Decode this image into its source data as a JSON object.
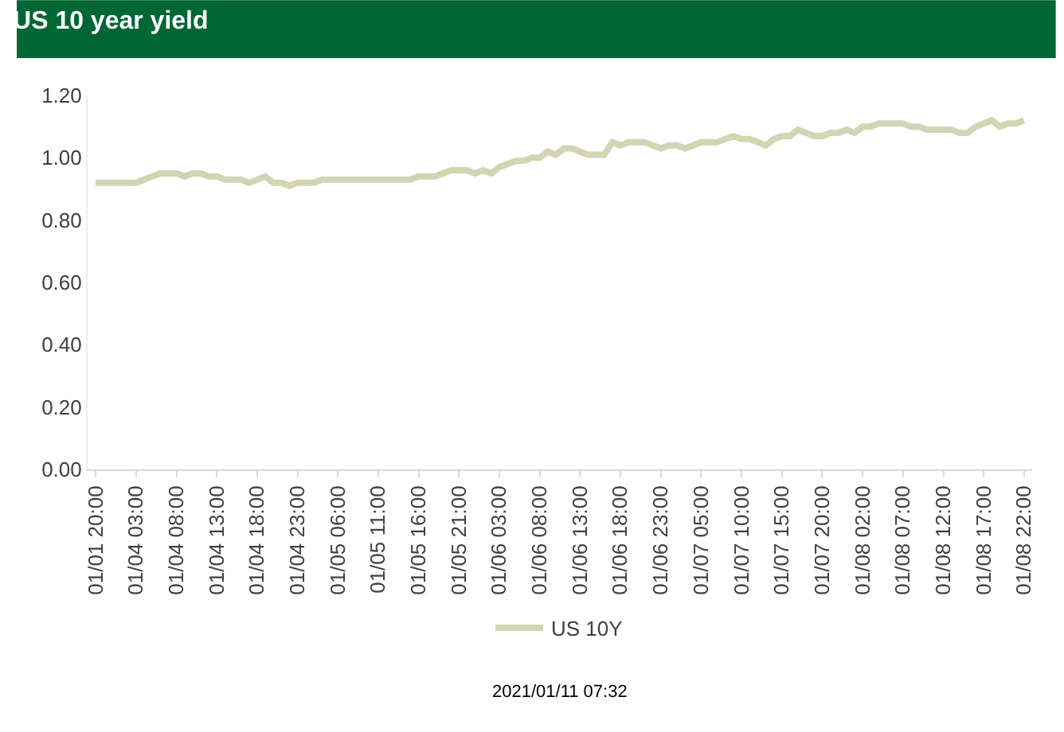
{
  "chart_data": {
    "type": "line",
    "title": "US 10 year yield",
    "categories": [
      "01/01 20:00",
      null,
      null,
      null,
      null,
      "01/04 03:00",
      null,
      null,
      null,
      null,
      "01/04 08:00",
      null,
      null,
      null,
      null,
      "01/04 13:00",
      null,
      null,
      null,
      null,
      "01/04 18:00",
      null,
      null,
      null,
      null,
      "01/04 23:00",
      null,
      null,
      null,
      null,
      "01/05 06:00",
      null,
      null,
      null,
      null,
      "01/05 11:00",
      null,
      null,
      null,
      null,
      "01/05 16:00",
      null,
      null,
      null,
      null,
      "01/05 21:00",
      null,
      null,
      null,
      null,
      "01/06 03:00",
      null,
      null,
      null,
      null,
      "01/06 08:00",
      null,
      null,
      null,
      null,
      "01/06 13:00",
      null,
      null,
      null,
      null,
      "01/06 18:00",
      null,
      null,
      null,
      null,
      "01/06 23:00",
      null,
      null,
      null,
      null,
      "01/07 05:00",
      null,
      null,
      null,
      null,
      "01/07 10:00",
      null,
      null,
      null,
      null,
      "01/07 15:00",
      null,
      null,
      null,
      null,
      "01/07 20:00",
      null,
      null,
      null,
      null,
      "01/08 02:00",
      null,
      null,
      null,
      null,
      "01/08 07:00",
      null,
      null,
      null,
      null,
      "01/08 12:00",
      null,
      null,
      null,
      null,
      "01/08 17:00",
      null,
      null,
      null,
      null,
      "01/08 22:00"
    ],
    "series": [
      {
        "name": "US 10Y",
        "color": "#d4d4b4",
        "values": [
          0.92,
          0.92,
          0.92,
          0.92,
          0.92,
          0.92,
          0.93,
          0.94,
          0.95,
          0.95,
          0.95,
          0.94,
          0.95,
          0.95,
          0.94,
          0.94,
          0.93,
          0.93,
          0.93,
          0.92,
          0.93,
          0.94,
          0.92,
          0.92,
          0.91,
          0.92,
          0.92,
          0.92,
          0.93,
          0.93,
          0.93,
          0.93,
          0.93,
          0.93,
          0.93,
          0.93,
          0.93,
          0.93,
          0.93,
          0.93,
          0.94,
          0.94,
          0.94,
          0.95,
          0.96,
          0.96,
          0.96,
          0.95,
          0.96,
          0.95,
          0.97,
          0.98,
          0.99,
          0.99,
          1.0,
          1.0,
          1.02,
          1.01,
          1.03,
          1.03,
          1.02,
          1.01,
          1.01,
          1.01,
          1.05,
          1.04,
          1.05,
          1.05,
          1.05,
          1.04,
          1.03,
          1.04,
          1.04,
          1.03,
          1.04,
          1.05,
          1.05,
          1.05,
          1.06,
          1.07,
          1.06,
          1.06,
          1.05,
          1.04,
          1.06,
          1.07,
          1.07,
          1.09,
          1.08,
          1.07,
          1.07,
          1.08,
          1.08,
          1.09,
          1.08,
          1.1,
          1.1,
          1.11,
          1.11,
          1.11,
          1.11,
          1.1,
          1.1,
          1.09,
          1.09,
          1.09,
          1.09,
          1.08,
          1.08,
          1.1,
          1.11,
          1.12,
          1.1,
          1.11,
          1.11,
          1.12
        ]
      }
    ],
    "ylim": [
      0,
      1.2
    ],
    "yticks": [
      {
        "value": 0,
        "label": "0.00"
      },
      {
        "value": 0.2,
        "label": "0.20"
      },
      {
        "value": 0.4,
        "label": "0.40"
      },
      {
        "value": 0.6,
        "label": "0.60"
      },
      {
        "value": 0.8,
        "label": "0.80"
      },
      {
        "value": 1.0,
        "label": "1.00"
      },
      {
        "value": 1.2,
        "label": "1.20"
      }
    ],
    "grid": false,
    "legend": "bottom",
    "marker": "none",
    "line_style": "solid",
    "annotations": [
      "2021/01/11 07:32"
    ]
  }
}
